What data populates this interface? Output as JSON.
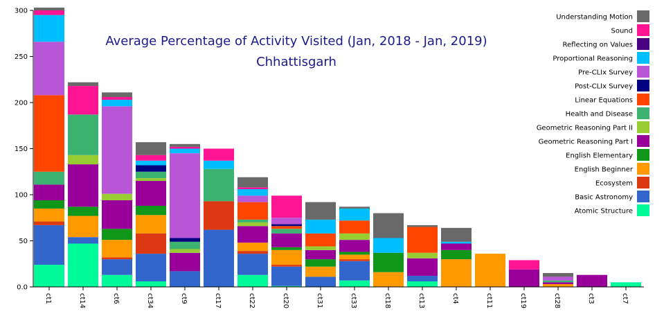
{
  "chart_data": {
    "type": "bar",
    "stacked": true,
    "title": "Average Percentage of Activity Visited (Jan, 2018 - Jan, 2019)",
    "subtitle": "Chhattisgarh",
    "xlabel": "",
    "ylabel": "",
    "ylim": [
      0,
      300
    ],
    "yticks": [
      0,
      50,
      100,
      150,
      200,
      250,
      300
    ],
    "ytick_labels": [
      "0.0",
      "50",
      "100",
      "150",
      "200",
      "250",
      "300"
    ],
    "grid": false,
    "legend_position": "top-right",
    "categories": [
      "ct1",
      "ct14",
      "ct6",
      "ct34",
      "ct9",
      "ct17",
      "ct22",
      "ct20",
      "ct31",
      "ct33",
      "ct18",
      "ct13",
      "ct4",
      "ct11",
      "ct19",
      "ct28",
      "ct3",
      "ct7"
    ],
    "series": [
      {
        "name": "Atomic Structure",
        "color": "#00fa9a",
        "values": [
          24,
          47,
          13,
          6,
          0,
          0,
          13,
          1,
          0,
          7,
          0,
          6,
          0,
          0,
          0,
          0,
          0,
          5
        ]
      },
      {
        "name": "Basic Astronomy",
        "color": "#3366cc",
        "values": [
          43,
          7,
          17,
          30,
          17,
          62,
          23,
          21,
          11,
          21,
          0,
          6,
          0,
          0,
          0,
          0,
          0,
          0
        ]
      },
      {
        "name": "Ecosystem",
        "color": "#dc3912",
        "values": [
          4,
          0,
          2,
          22,
          0,
          31,
          3,
          2,
          0,
          2,
          0,
          0,
          0,
          0,
          0,
          0,
          0,
          0
        ]
      },
      {
        "name": "English Beginner",
        "color": "#ff9900",
        "values": [
          14,
          23,
          19,
          20,
          0,
          0,
          9,
          16,
          11,
          5,
          16,
          0,
          30,
          36,
          0,
          3,
          0,
          0
        ]
      },
      {
        "name": "English Elementary",
        "color": "#109618",
        "values": [
          9,
          10,
          12,
          10,
          0,
          0,
          0,
          3,
          8,
          3,
          21,
          0,
          10,
          0,
          0,
          0,
          0,
          0
        ]
      },
      {
        "name": "Geometric Reasoning Part I",
        "color": "#990099",
        "values": [
          17,
          46,
          31,
          27,
          20,
          0,
          18,
          15,
          10,
          13,
          0,
          19,
          7,
          0,
          19,
          2,
          13,
          0
        ]
      },
      {
        "name": "Geometric Reasoning Part II",
        "color": "#99cc33",
        "values": [
          0,
          10,
          7,
          3,
          4,
          0,
          4,
          0,
          4,
          7,
          0,
          6,
          0,
          0,
          0,
          0,
          0,
          0
        ]
      },
      {
        "name": "Health and Disease",
        "color": "#3cb371",
        "values": [
          14,
          44,
          0,
          7,
          8,
          35,
          3,
          5,
          0,
          0,
          0,
          0,
          0,
          0,
          0,
          2,
          0,
          0
        ]
      },
      {
        "name": "Linear Equations",
        "color": "#ff4500",
        "values": [
          83,
          0,
          0,
          0,
          0,
          0,
          19,
          3,
          14,
          14,
          0,
          28,
          0,
          0,
          0,
          0,
          0,
          0
        ]
      },
      {
        "name": "Post-CLIx Survey",
        "color": "#000080",
        "values": [
          0,
          0,
          0,
          7,
          4,
          0,
          0,
          2,
          0,
          0,
          0,
          0,
          0,
          0,
          0,
          0,
          0,
          0
        ]
      },
      {
        "name": "Pre-CLIx Survey",
        "color": "#b856d7",
        "values": [
          58,
          0,
          95,
          0,
          92,
          0,
          7,
          7,
          0,
          0,
          0,
          0,
          0,
          0,
          0,
          4,
          0,
          0
        ]
      },
      {
        "name": "Proportional Reasoning",
        "color": "#00bfff",
        "values": [
          29,
          0,
          7,
          5,
          5,
          9,
          7,
          0,
          15,
          13,
          16,
          0,
          2,
          0,
          0,
          0,
          0,
          0
        ]
      },
      {
        "name": "Reflecting on Values",
        "color": "#4b0082",
        "values": [
          0,
          0,
          0,
          0,
          0,
          0,
          0,
          0,
          0,
          0,
          0,
          0,
          0,
          0,
          0,
          0,
          0,
          0
        ]
      },
      {
        "name": "Sound",
        "color": "#ff1493",
        "values": [
          5,
          31,
          3,
          6,
          2,
          13,
          2,
          24,
          0,
          0,
          0,
          0,
          0,
          0,
          10,
          0,
          0,
          0
        ]
      },
      {
        "name": "Understanding Motion",
        "color": "#696969",
        "values": [
          3,
          4,
          5,
          14,
          3,
          0,
          11,
          0,
          19,
          2,
          27,
          2,
          15,
          0,
          0,
          4,
          0,
          0
        ]
      }
    ]
  }
}
